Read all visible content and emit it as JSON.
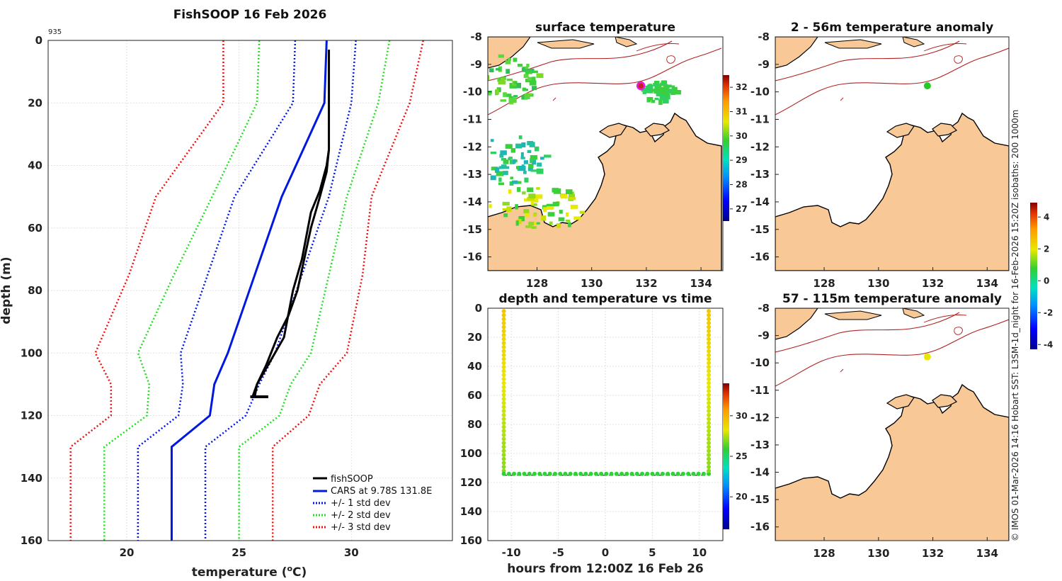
{
  "profile": {
    "title": "FishSOOP 16 Feb 2026",
    "id_label": "935",
    "xlabel_main": "temperature (",
    "xlabel_sup": "o",
    "xlabel_end": "C)",
    "ylabel": "depth (m)",
    "legend": [
      "fishSOOP",
      "CARS at 9.78S 131.8E",
      "+/- 1 std dev",
      "+/- 2 std dev",
      "+/- 3 std dev"
    ],
    "legend_colors": [
      "#000000",
      "#0018e0",
      "#0018e0",
      "#22dd22",
      "#ee1111"
    ]
  },
  "surface": {
    "title": "surface temperature"
  },
  "anom_shallow": {
    "title": "2 - 56m temperature anomaly"
  },
  "anom_deep": {
    "title": "57 - 115m temperature anomaly"
  },
  "timeplot": {
    "title": "depth and temperature vs time",
    "xlabel": "hours from 12:00Z 16 Feb 26"
  },
  "credit": "© IMOS 01-Mar-2026 14:16 Hobart SST: L3SM-1d_night for 16-Feb-2026 15:20Z isobaths: 200  1000m",
  "chart_data": [
    {
      "type": "line",
      "name": "profile",
      "xlim": [
        16.5,
        34.5
      ],
      "ylim": [
        160,
        0
      ],
      "xticks": [
        20,
        25,
        30
      ],
      "yticks": [
        0,
        20,
        40,
        60,
        80,
        100,
        120,
        140,
        160
      ],
      "depth": [
        0,
        20,
        50,
        75,
        100,
        110,
        120,
        130,
        160
      ],
      "series": [
        {
          "name": "CARS at 9.78S 131.8E",
          "style": "solid",
          "color": "#0018e0",
          "values": [
            28.9,
            28.8,
            26.9,
            25.7,
            24.5,
            23.9,
            23.7,
            22.0,
            22.0
          ]
        },
        {
          "name": "+1 std dev",
          "style": "dot",
          "color": "#0018e0",
          "values": [
            30.2,
            30.0,
            29.0,
            27.8,
            26.6,
            25.9,
            25.3,
            23.5,
            23.5
          ]
        },
        {
          "name": "-1 std dev",
          "style": "dot",
          "color": "#0018e0",
          "values": [
            27.5,
            27.4,
            24.8,
            23.6,
            22.4,
            22.5,
            22.3,
            20.5,
            20.5
          ]
        },
        {
          "name": "+2 std dev",
          "style": "dot",
          "color": "#22dd22",
          "values": [
            31.7,
            31.2,
            29.8,
            29.0,
            28.2,
            27.3,
            26.8,
            25.0,
            25.0
          ]
        },
        {
          "name": "-2 std dev",
          "style": "dot",
          "color": "#22dd22",
          "values": [
            25.9,
            25.8,
            23.8,
            22.1,
            20.5,
            21.0,
            20.9,
            19.0,
            19.0
          ]
        },
        {
          "name": "+3 std dev",
          "style": "dot",
          "color": "#ee1111",
          "values": [
            33.2,
            32.6,
            30.9,
            30.5,
            29.8,
            28.6,
            28.1,
            26.5,
            26.5
          ]
        },
        {
          "name": "-3 std dev",
          "style": "dot",
          "color": "#ee1111",
          "values": [
            24.3,
            24.3,
            21.3,
            20.1,
            18.6,
            19.3,
            19.3,
            17.5,
            17.5
          ]
        }
      ],
      "fishsoop": {
        "name": "fishSOOP",
        "color": "#000000",
        "down": {
          "depth": [
            3,
            20,
            35,
            40,
            48,
            55,
            70,
            80,
            95,
            100,
            110,
            114
          ],
          "temp": [
            29.0,
            29.0,
            29.0,
            28.9,
            28.6,
            28.2,
            27.8,
            27.4,
            27.0,
            26.6,
            25.8,
            25.6
          ]
        },
        "up": {
          "depth": [
            114,
            110,
            104,
            95,
            88,
            80,
            70,
            60,
            50,
            42,
            35,
            20,
            3
          ],
          "temp": [
            25.7,
            25.8,
            26.2,
            26.7,
            27.2,
            27.6,
            27.9,
            28.2,
            28.6,
            28.9,
            29.0,
            29.0,
            29.0
          ]
        },
        "bottom_depth": 114
      }
    },
    {
      "type": "scatter",
      "name": "depth and temperature vs time",
      "xlim": [
        -12.5,
        12.5
      ],
      "ylim": [
        160,
        0
      ],
      "xticks": [
        -10,
        -5,
        0,
        5,
        10
      ],
      "yticks": [
        0,
        20,
        40,
        60,
        80,
        100,
        120,
        140,
        160
      ],
      "segments": [
        {
          "t0": -10.8,
          "t1": -10.8,
          "d0": 2,
          "d1": 112,
          "temp0": 29.3,
          "temp1": 27.0
        },
        {
          "t0": -10.8,
          "t1": 11.0,
          "d0": 114,
          "d1": 114,
          "temp0": 25.8,
          "temp1": 25.8
        },
        {
          "t0": 11.0,
          "t1": 11.0,
          "d0": 112,
          "d1": 2,
          "temp0": 27.0,
          "temp1": 29.3
        }
      ],
      "bottom_depth": 115,
      "colorbar": {
        "ticks": [
          20,
          25,
          30
        ],
        "range": [
          16,
          34
        ]
      }
    },
    {
      "type": "heatmap",
      "name": "surface temperature",
      "lon_range": [
        126.2,
        134.8
      ],
      "lat_range": [
        -16.5,
        -8
      ],
      "xticks": [
        128,
        130,
        132,
        134
      ],
      "yticks": [
        -8,
        -9,
        -10,
        -11,
        -12,
        -13,
        -14,
        -15,
        -16
      ],
      "station": {
        "lon": 131.8,
        "lat": -9.78
      },
      "colorbar": {
        "ticks": [
          27,
          28,
          29,
          30,
          31,
          32
        ],
        "range": [
          26.5,
          32.5
        ]
      }
    },
    {
      "type": "heatmap",
      "name": "2 - 56m temperature anomaly",
      "xticks": [
        128,
        130,
        132,
        134
      ],
      "yticks": [
        -8,
        -9,
        -10,
        -11,
        -12,
        -13,
        -14,
        -15,
        -16
      ],
      "station": {
        "lon": 131.8,
        "lat": -9.78,
        "anomaly": 0.2
      }
    },
    {
      "type": "heatmap",
      "name": "57 - 115m temperature anomaly",
      "xticks": [
        128,
        130,
        132,
        134
      ],
      "yticks": [
        -8,
        -9,
        -10,
        -11,
        -12,
        -13,
        -14,
        -15,
        -16
      ],
      "station": {
        "lon": 131.8,
        "lat": -9.78,
        "anomaly": 2.0
      },
      "colorbar": {
        "ticks": [
          -4,
          -2,
          0,
          2,
          4
        ],
        "range": [
          -4.3,
          4.9
        ]
      }
    }
  ]
}
